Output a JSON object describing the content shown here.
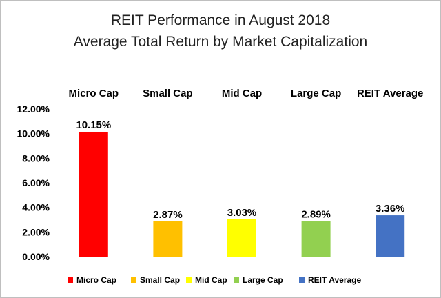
{
  "chart_data": {
    "type": "bar",
    "title": "REIT Performance in August 2018",
    "subtitle": "Average Total Return by Market Capitalization",
    "categories": [
      "Micro Cap",
      "Small Cap",
      "Mid Cap",
      "Large Cap",
      "REIT Average"
    ],
    "values": [
      10.15,
      2.87,
      3.03,
      2.89,
      3.36
    ],
    "data_labels": [
      "10.15%",
      "2.87%",
      "3.03%",
      "2.89%",
      "3.36%"
    ],
    "colors": [
      "#ff0000",
      "#ffc000",
      "#ffff00",
      "#92d050",
      "#4472c4"
    ],
    "ylim": [
      0,
      12
    ],
    "yticks": [
      0,
      2,
      4,
      6,
      8,
      10,
      12
    ],
    "ytick_labels": [
      "0.00%",
      "2.00%",
      "4.00%",
      "6.00%",
      "8.00%",
      "10.00%",
      "12.00%"
    ],
    "category_labels_position": "top",
    "grid": false,
    "legend": {
      "position": "bottom",
      "entries": [
        "Micro Cap",
        "Small Cap",
        "Mid Cap",
        "Large Cap",
        "REIT Average"
      ]
    },
    "xlabel": "",
    "ylabel": ""
  }
}
